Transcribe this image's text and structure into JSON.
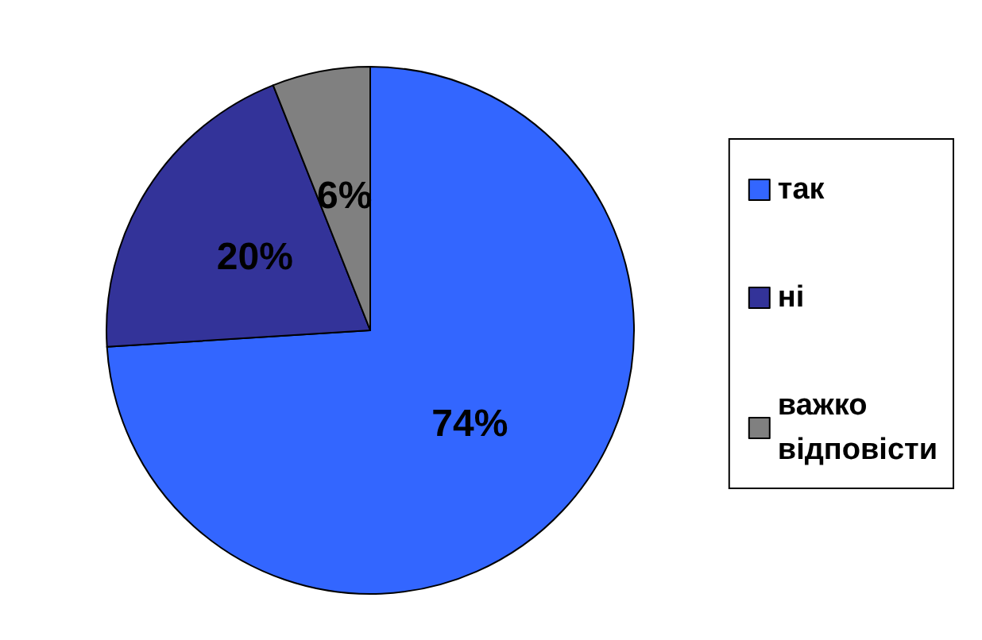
{
  "chart_data": {
    "type": "pie",
    "categories": [
      "так",
      "ні",
      "важко відповісти"
    ],
    "values": [
      74,
      20,
      6
    ],
    "colors": [
      "#3366ff",
      "#333399",
      "#808080"
    ],
    "value_labels": [
      "74%",
      "20%",
      "6%"
    ],
    "legend": "right"
  }
}
